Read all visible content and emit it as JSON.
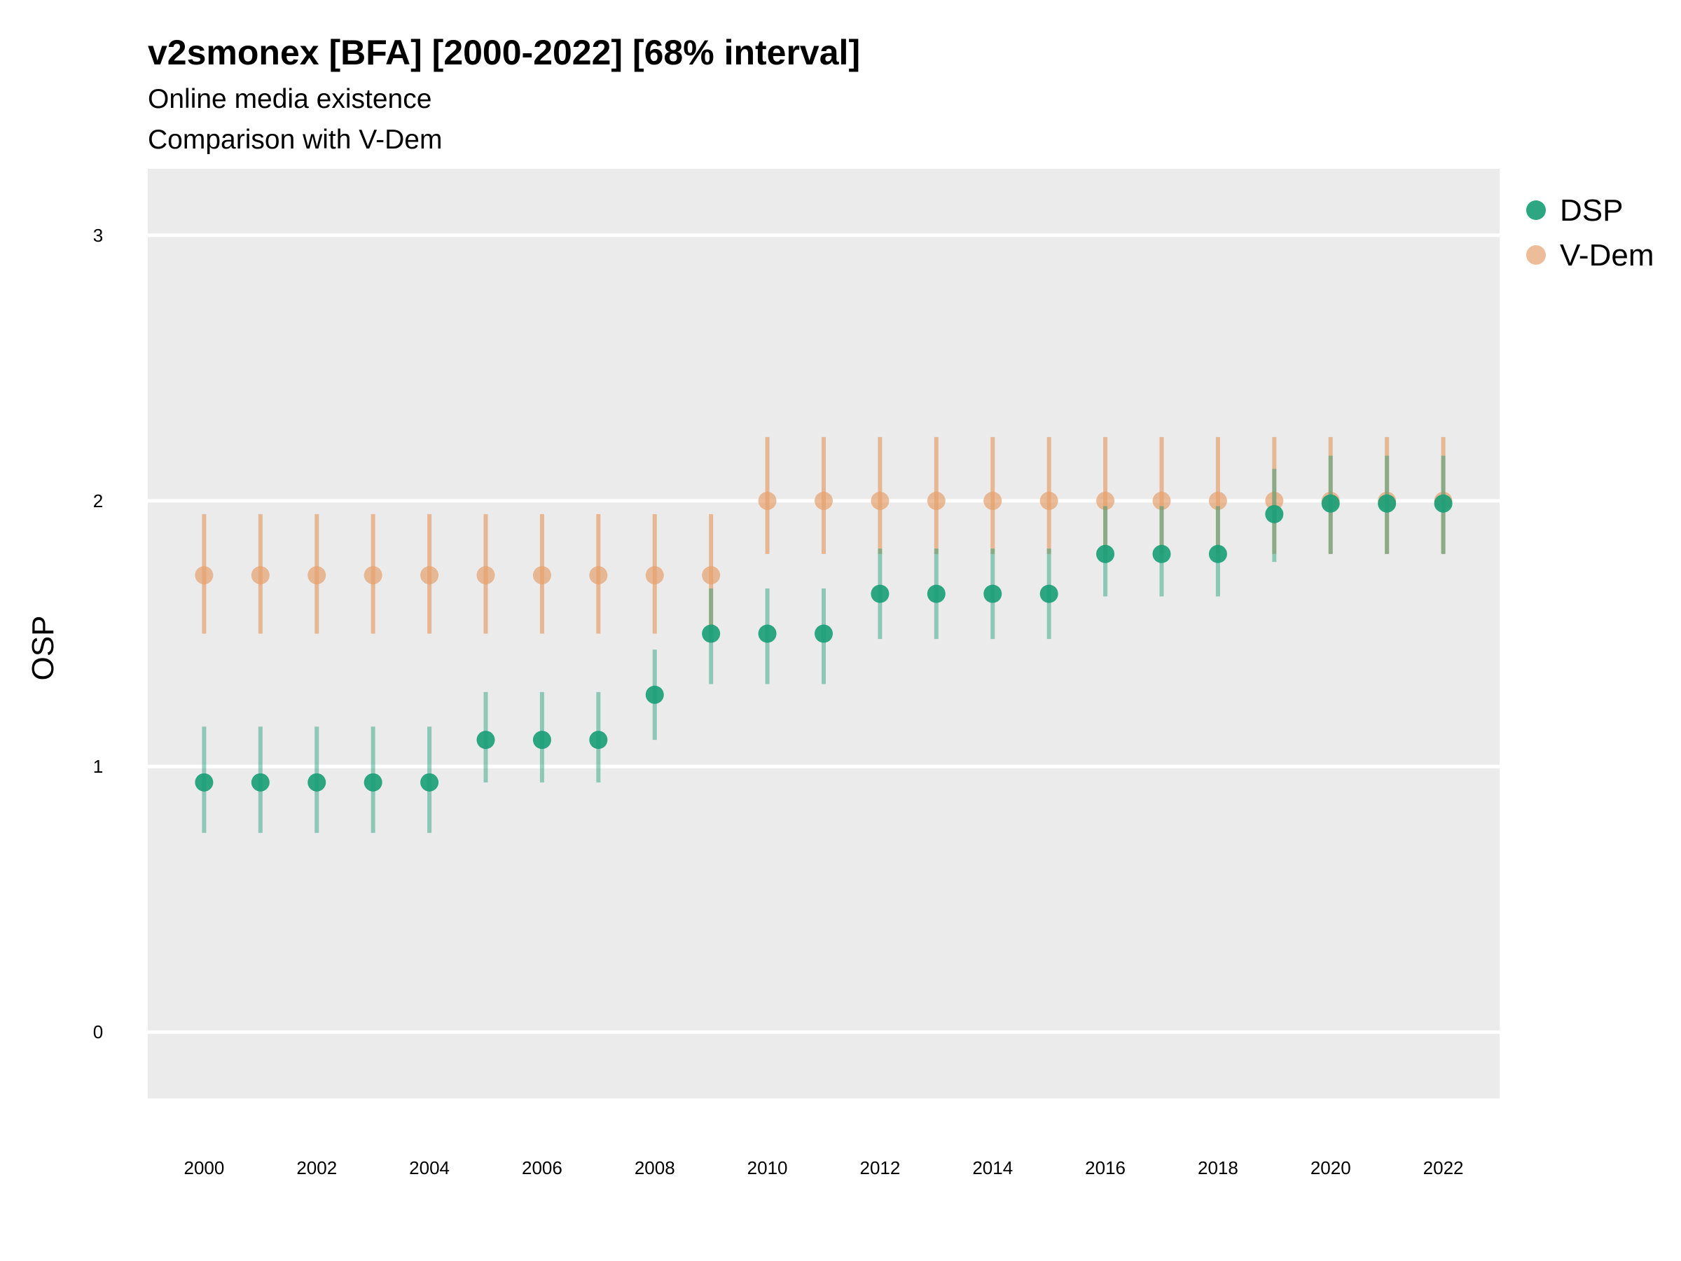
{
  "chart_data": {
    "type": "scatter",
    "title": "v2smonex [BFA] [2000-2022] [68% interval]",
    "subtitle_lines": [
      "Online media existence",
      "Comparison with V-Dem"
    ],
    "xlabel": "",
    "ylabel": "OSP",
    "xlim": [
      1999,
      2023
    ],
    "ylim": [
      -0.25,
      3.25
    ],
    "x_ticks": [
      2000,
      2002,
      2004,
      2006,
      2008,
      2010,
      2012,
      2014,
      2016,
      2018,
      2020,
      2022
    ],
    "y_ticks": [
      0,
      1,
      2,
      3
    ],
    "grid": true,
    "legend_position": "right",
    "x": [
      2000,
      2001,
      2002,
      2003,
      2004,
      2005,
      2006,
      2007,
      2008,
      2009,
      2010,
      2011,
      2012,
      2013,
      2014,
      2015,
      2016,
      2017,
      2018,
      2019,
      2020,
      2021,
      2022
    ],
    "series": [
      {
        "name": "V-Dem",
        "color": "#E6A16E",
        "values": [
          1.72,
          1.72,
          1.72,
          1.72,
          1.72,
          1.72,
          1.72,
          1.72,
          1.72,
          1.72,
          2.0,
          2.0,
          2.0,
          2.0,
          2.0,
          2.0,
          2.0,
          2.0,
          2.0,
          2.0,
          2.0,
          2.0,
          2.0
        ],
        "lower": [
          1.5,
          1.5,
          1.5,
          1.5,
          1.5,
          1.5,
          1.5,
          1.5,
          1.5,
          1.5,
          1.8,
          1.8,
          1.8,
          1.8,
          1.8,
          1.8,
          1.8,
          1.8,
          1.8,
          1.8,
          1.8,
          1.8,
          1.8
        ],
        "upper": [
          1.95,
          1.95,
          1.95,
          1.95,
          1.95,
          1.95,
          1.95,
          1.95,
          1.95,
          1.95,
          2.24,
          2.24,
          2.24,
          2.24,
          2.24,
          2.24,
          2.24,
          2.24,
          2.24,
          2.24,
          2.24,
          2.24,
          2.24
        ]
      },
      {
        "name": "DSP",
        "color": "#1B9E77",
        "values": [
          0.94,
          0.94,
          0.94,
          0.94,
          0.94,
          1.1,
          1.1,
          1.1,
          1.27,
          1.5,
          1.5,
          1.5,
          1.65,
          1.65,
          1.65,
          1.65,
          1.8,
          1.8,
          1.8,
          1.95,
          1.99,
          1.99,
          1.99
        ],
        "lower": [
          0.75,
          0.75,
          0.75,
          0.75,
          0.75,
          0.94,
          0.94,
          0.94,
          1.1,
          1.31,
          1.31,
          1.31,
          1.48,
          1.48,
          1.48,
          1.48,
          1.64,
          1.64,
          1.64,
          1.77,
          1.8,
          1.8,
          1.8
        ],
        "upper": [
          1.15,
          1.15,
          1.15,
          1.15,
          1.15,
          1.28,
          1.28,
          1.28,
          1.44,
          1.67,
          1.67,
          1.67,
          1.82,
          1.82,
          1.82,
          1.82,
          1.98,
          1.98,
          1.98,
          2.12,
          2.17,
          2.17,
          2.17
        ]
      }
    ],
    "legend_order": [
      "DSP",
      "V-Dem"
    ]
  }
}
